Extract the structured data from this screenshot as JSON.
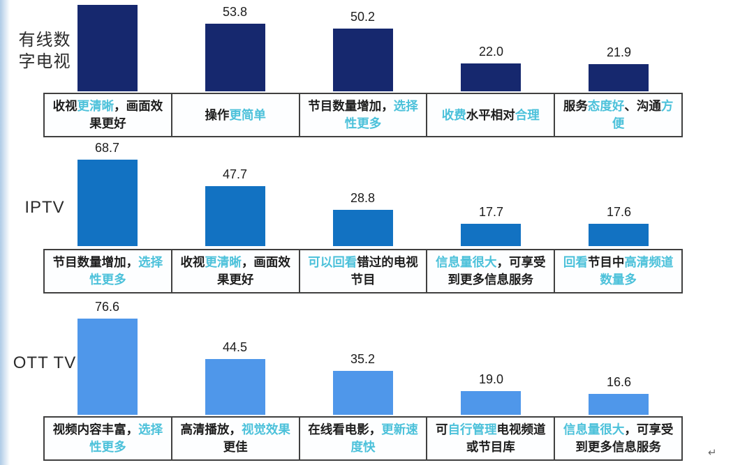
{
  "page": {
    "return_mark": "↵"
  },
  "colors": {
    "cable_bar": "#16286e",
    "iptv_bar": "#1272c2",
    "ott_bar": "#4f97ea",
    "highlight_text": "#4cc1da",
    "dark_text": "#1d1d1d",
    "box_border": "#404040"
  },
  "chart_data": {
    "type": "bar",
    "orientation": "vertical",
    "legend": "none",
    "grid": false,
    "note": "three stacked bar-chart rows; each bar has a bordered reason-label box below; first bar of first row is cut off at top edge so its value is not visible",
    "rows": [
      {
        "category": "有线数字电视",
        "color": "#16286e",
        "bars": [
          {
            "value": null,
            "value_label": "",
            "cut_off_top": true,
            "label": "收视更清晰，画面效果更好",
            "segments": [
              {
                "t": "收视",
                "hl": false
              },
              {
                "t": "更清晰",
                "hl": true
              },
              {
                "t": "，画面效果更好",
                "hl": false
              }
            ]
          },
          {
            "value": 53.8,
            "value_label": "53.8",
            "label": "操作更简单",
            "segments": [
              {
                "t": "操作",
                "hl": false
              },
              {
                "t": "更简单",
                "hl": true
              }
            ]
          },
          {
            "value": 50.2,
            "value_label": "50.2",
            "label": "节目数量增加，选择性更多",
            "segments": [
              {
                "t": "节目数量增加，",
                "hl": false
              },
              {
                "t": "选择性更多",
                "hl": true
              }
            ]
          },
          {
            "value": 22.0,
            "value_label": "22.0",
            "label": "收费水平相对合理",
            "segments": [
              {
                "t": "收费",
                "hl": true
              },
              {
                "t": "水平相对",
                "hl": false
              },
              {
                "t": "合理",
                "hl": true
              }
            ]
          },
          {
            "value": 21.9,
            "value_label": "21.9",
            "label": "服务态度好、沟通方便",
            "segments": [
              {
                "t": "服务",
                "hl": false
              },
              {
                "t": "态度好",
                "hl": true
              },
              {
                "t": "、沟通",
                "hl": false
              },
              {
                "t": "方便",
                "hl": true
              }
            ]
          }
        ]
      },
      {
        "category": "IPTV",
        "color": "#1272c2",
        "bars": [
          {
            "value": 68.7,
            "value_label": "68.7",
            "label": "节目数量增加，选择性更多",
            "segments": [
              {
                "t": "节目数量增加，",
                "hl": false
              },
              {
                "t": "选择性更多",
                "hl": true
              }
            ]
          },
          {
            "value": 47.7,
            "value_label": "47.7",
            "label": "收视更清晰，画面效果更好",
            "segments": [
              {
                "t": "收视",
                "hl": false
              },
              {
                "t": "更清晰",
                "hl": true
              },
              {
                "t": "，画面效果更好",
                "hl": false
              }
            ]
          },
          {
            "value": 28.8,
            "value_label": "28.8",
            "label": "可以回看错过的电视节目",
            "segments": [
              {
                "t": "可以回看",
                "hl": true
              },
              {
                "t": "错过的电视节目",
                "hl": false
              }
            ]
          },
          {
            "value": 17.7,
            "value_label": "17.7",
            "label": "信息量很大，可享受到更多信息服务",
            "segments": [
              {
                "t": "信息量很大",
                "hl": true
              },
              {
                "t": "，可享受到更多信息服务",
                "hl": false
              }
            ]
          },
          {
            "value": 17.6,
            "value_label": "17.6",
            "label": "回看节目中高清频道数量多",
            "segments": [
              {
                "t": "回看",
                "hl": true
              },
              {
                "t": "节目中",
                "hl": false
              },
              {
                "t": "高清频道数量多",
                "hl": true
              }
            ]
          }
        ]
      },
      {
        "category": "OTT TV",
        "color": "#4f97ea",
        "bars": [
          {
            "value": 76.6,
            "value_label": "76.6",
            "label": "视频内容丰富，选择性更多",
            "segments": [
              {
                "t": "视频内容丰富，",
                "hl": false
              },
              {
                "t": "选择性更多",
                "hl": true
              }
            ]
          },
          {
            "value": 44.5,
            "value_label": "44.5",
            "label": "高清播放，视觉效果更佳",
            "segments": [
              {
                "t": "高清播放，",
                "hl": false
              },
              {
                "t": "视觉效果",
                "hl": true
              },
              {
                "t": "更佳",
                "hl": false
              }
            ]
          },
          {
            "value": 35.2,
            "value_label": "35.2",
            "label": "在线看电影，更新速度快",
            "segments": [
              {
                "t": "在线看电影，",
                "hl": false
              },
              {
                "t": "更新速度快",
                "hl": true
              }
            ]
          },
          {
            "value": 19.0,
            "value_label": "19.0",
            "label": "可自行管理电视频道或节目库",
            "segments": [
              {
                "t": "可",
                "hl": false
              },
              {
                "t": "自行管理",
                "hl": true
              },
              {
                "t": "电视频道或节目库",
                "hl": false
              }
            ]
          },
          {
            "value": 16.6,
            "value_label": "16.6",
            "label": "信息量很大，可享受到更多信息服务",
            "segments": [
              {
                "t": "信息量很大",
                "hl": true
              },
              {
                "t": "，可享受到更多信息服务",
                "hl": false
              }
            ]
          }
        ]
      }
    ]
  }
}
